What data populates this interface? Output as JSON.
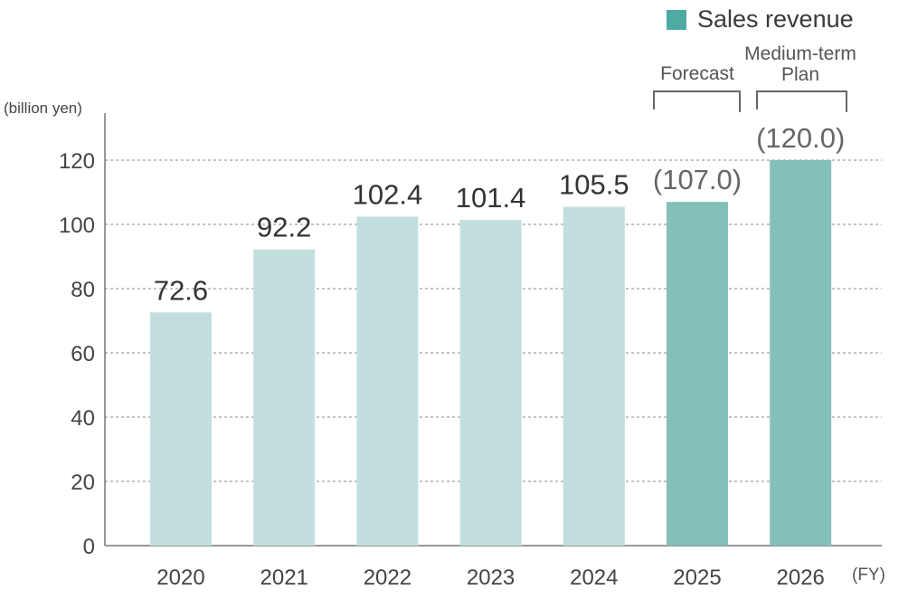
{
  "chart_data": {
    "type": "bar",
    "title": "",
    "ylabel": "(billion yen)",
    "xlabel": "(FY)",
    "ylim": [
      0,
      120
    ],
    "yticks": [
      0,
      20,
      40,
      60,
      80,
      100,
      120
    ],
    "grid": "horizontal dotted",
    "legend": {
      "label": "Sales revenue",
      "position": "top-right",
      "color": "#4faaa3"
    },
    "categories": [
      "2020",
      "2021",
      "2022",
      "2023",
      "2024",
      "2025",
      "2026"
    ],
    "values": [
      72.6,
      92.2,
      102.4,
      101.4,
      105.5,
      107.0,
      120.0
    ],
    "value_labels": [
      "72.6",
      "92.2",
      "102.4",
      "101.4",
      "105.5",
      "(107.0)",
      "(120.0)"
    ],
    "kinds": [
      "actual",
      "actual",
      "actual",
      "actual",
      "actual",
      "forecast",
      "plan"
    ],
    "colors": {
      "actual": "#c3dfdd",
      "forecast": "#84bfb9",
      "plan": "#84bfb9"
    },
    "annotations": {
      "forecast": "Forecast",
      "plan_line1": "Medium-term",
      "plan_line2": "Plan"
    }
  }
}
